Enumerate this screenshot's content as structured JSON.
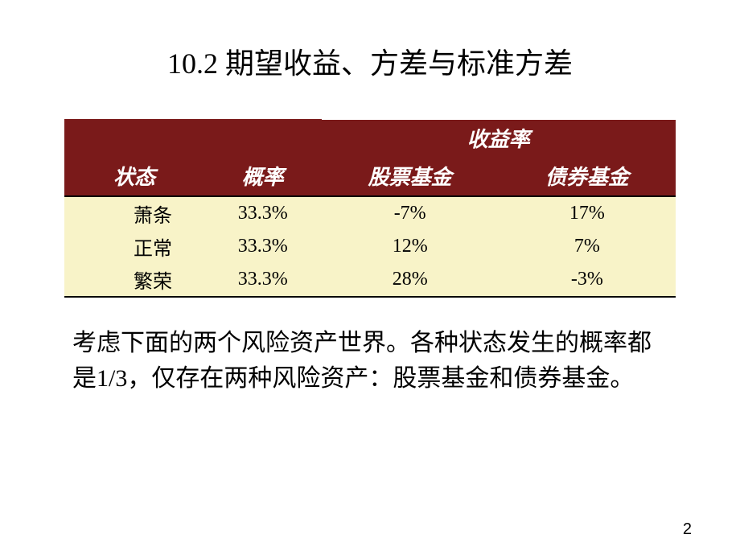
{
  "slide": {
    "title": "10.2 期望收益、方差与标准方差",
    "page_number": "2"
  },
  "table": {
    "colors": {
      "header_bg": "#7a1a1a",
      "header_text": "#ffffff",
      "data_bg": "#f8f3c8",
      "data_text": "#000000",
      "border": "#000000",
      "header_border": "#ffffff"
    },
    "fonts": {
      "header_size": 26,
      "header_family": "KaiTi",
      "header_style": "italic",
      "data_size": 24,
      "data_family": "SimSun"
    },
    "group_header": "收益率",
    "columns": {
      "state": "状态",
      "probability": "概率",
      "stock_fund": "股票基金",
      "bond_fund": "债券基金"
    },
    "rows": [
      {
        "state": "萧条",
        "probability": "33.3%",
        "stock_fund": "-7%",
        "bond_fund": "17%"
      },
      {
        "state": "正常",
        "probability": "33.3%",
        "stock_fund": "12%",
        "bond_fund": "7%"
      },
      {
        "state": "繁荣",
        "probability": "33.3%",
        "stock_fund": "28%",
        "bond_fund": "-3%"
      }
    ]
  },
  "description": {
    "text": "考虑下面的两个风险资产世界。各种状态发生的概率都是1/3，仅存在两种风险资产：股票基金和债券基金。",
    "fontsize": 30,
    "color": "#000000"
  }
}
